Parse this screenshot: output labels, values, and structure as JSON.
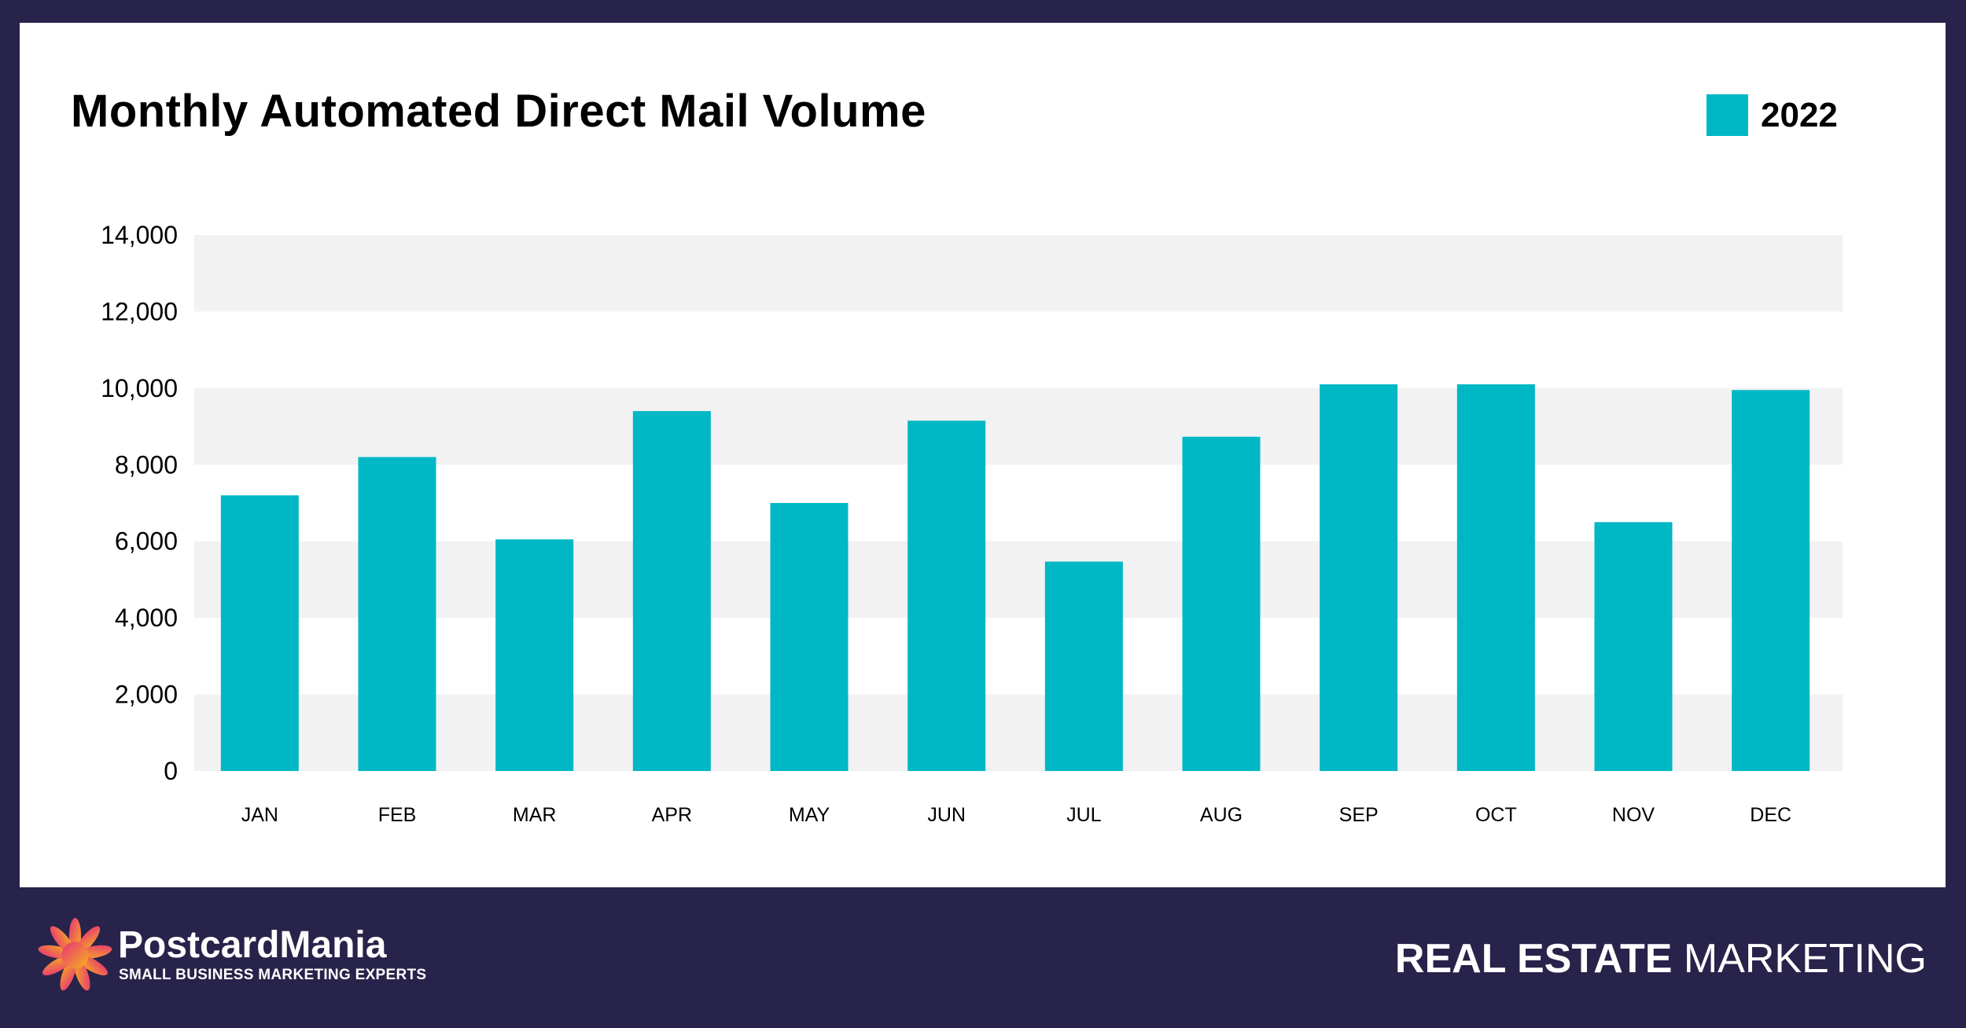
{
  "chart_data": {
    "type": "bar",
    "title": "Monthly Automated Direct Mail Volume",
    "xlabel": "",
    "ylabel": "",
    "categories": [
      "JAN",
      "FEB",
      "MAR",
      "APR",
      "MAY",
      "JUN",
      "JUL",
      "AUG",
      "SEP",
      "OCT",
      "NOV",
      "DEC"
    ],
    "series": [
      {
        "name": "2022",
        "values": [
          7200,
          8200,
          6050,
          9400,
          7000,
          9150,
          5470,
          8730,
          10100,
          10100,
          6500,
          9950
        ],
        "color": "#00b7c5"
      }
    ],
    "ylim": [
      0,
      14000
    ],
    "yticks": [
      "0",
      "2,000",
      "4,000",
      "6,000",
      "8,000",
      "10,000",
      "12,000",
      "14,000"
    ],
    "grid": "alternating horizontal bands",
    "legend": "top-right"
  },
  "footer": {
    "brand": "PostcardMania",
    "tagline": "SMALL BUSINESS MARKETING EXPERTS",
    "section_bold": "REAL ESTATE",
    "section_light": "MARKETING"
  },
  "colors": {
    "background": "#28234a",
    "bar": "#00b7c5",
    "band": "#f2f2f2"
  }
}
